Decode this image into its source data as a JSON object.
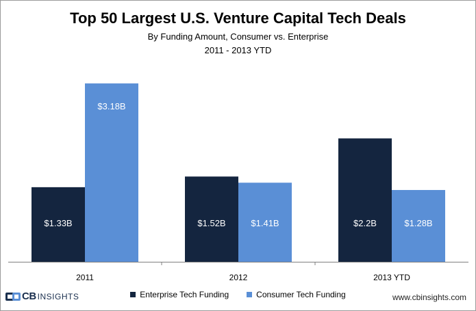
{
  "title": "Top 50 Largest U.S. Venture Capital Tech Deals",
  "subtitle": "By Funding Amount, Consumer vs. Enterprise",
  "subtitle2": "2011  - 2013  YTD",
  "brand": {
    "name_bold": "CB",
    "name_light": "INSIGHTS",
    "website": "www.cbinsights.com"
  },
  "colors": {
    "enterprise": "#14253f",
    "consumer": "#5a8fd6",
    "axis": "#7f7f7f"
  },
  "chart_data": {
    "type": "bar",
    "title": "Top 50 Largest U.S. Venture Capital Tech Deals",
    "categories": [
      "2011",
      "2012",
      "2013 YTD"
    ],
    "series": [
      {
        "name": "Enterprise Tech Funding",
        "values": [
          1.33,
          1.52,
          2.2
        ],
        "labels": [
          "$1.33B",
          "$1.52B",
          "$2.2B"
        ]
      },
      {
        "name": "Consumer Tech Funding",
        "values": [
          3.18,
          1.41,
          1.28
        ],
        "labels": [
          "$3.18B",
          "$1.41B",
          "$1.28B"
        ]
      }
    ],
    "ylim": [
      0,
      3.4
    ],
    "xlabel": "",
    "ylabel": "",
    "legend": "bottom",
    "grid": false
  }
}
